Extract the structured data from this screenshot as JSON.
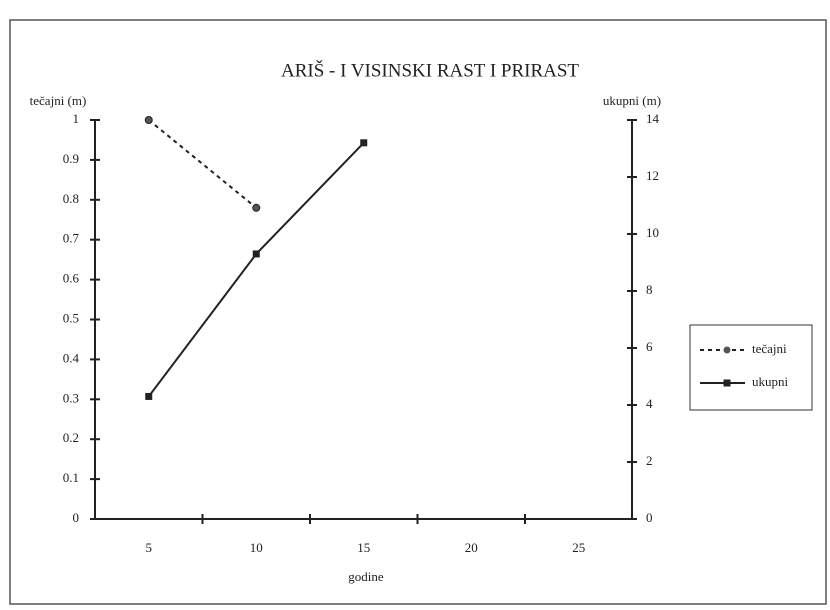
{
  "chart_data": {
    "type": "line",
    "title": "ARIŠ - I VISINSKI RAST I PRIRAST",
    "y_label": "tečajni (m)",
    "y2_label": "ukupni (m)",
    "x_label": "godine",
    "categories": [
      "5",
      "10",
      "15",
      "20",
      "25"
    ],
    "series": [
      {
        "name": "tečajni",
        "color": "#222222",
        "dash": true,
        "marker": "circle",
        "values": [
          1,
          0.78,
          null,
          null,
          null
        ]
      },
      {
        "name": "ukupni",
        "color": "#222222",
        "dash": false,
        "marker": "square",
        "axis": "y2",
        "values": [
          4.3,
          9.3,
          13.2,
          null,
          null
        ]
      }
    ],
    "ylim": [
      0,
      1
    ],
    "yticks": [
      0,
      0.1,
      0.2,
      0.3,
      0.4,
      0.5,
      0.6,
      0.7,
      0.8,
      0.9,
      1
    ],
    "y2lim": [
      0,
      14
    ],
    "y2ticks": [
      0,
      2,
      4,
      6,
      8,
      10,
      12,
      14
    ],
    "legend": "right"
  }
}
